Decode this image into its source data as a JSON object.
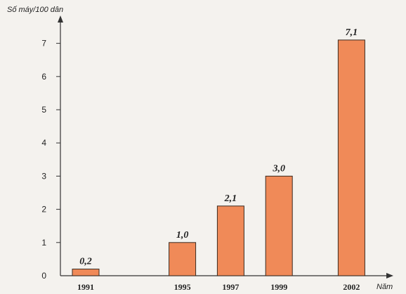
{
  "chart_data": {
    "type": "bar",
    "ylabel": "Số máy/100 dân",
    "xlabel": "Năm",
    "categories": [
      "1991",
      "1995",
      "1997",
      "1999",
      "2002"
    ],
    "x": [
      1991,
      1995,
      1997,
      1999,
      2002
    ],
    "values": [
      0.2,
      1.0,
      2.1,
      3.0,
      7.1
    ],
    "data_labels": [
      "0,2",
      "1,0",
      "2,1",
      "3,0",
      "7,1"
    ],
    "yticks": [
      "0",
      "1",
      "2",
      "3",
      "4",
      "5",
      "6",
      "7"
    ],
    "ylim": [
      0,
      8
    ],
    "bar_color": "#f08a58",
    "bar_edge_color": "#3a2a20",
    "grid": false,
    "legend": "none"
  }
}
